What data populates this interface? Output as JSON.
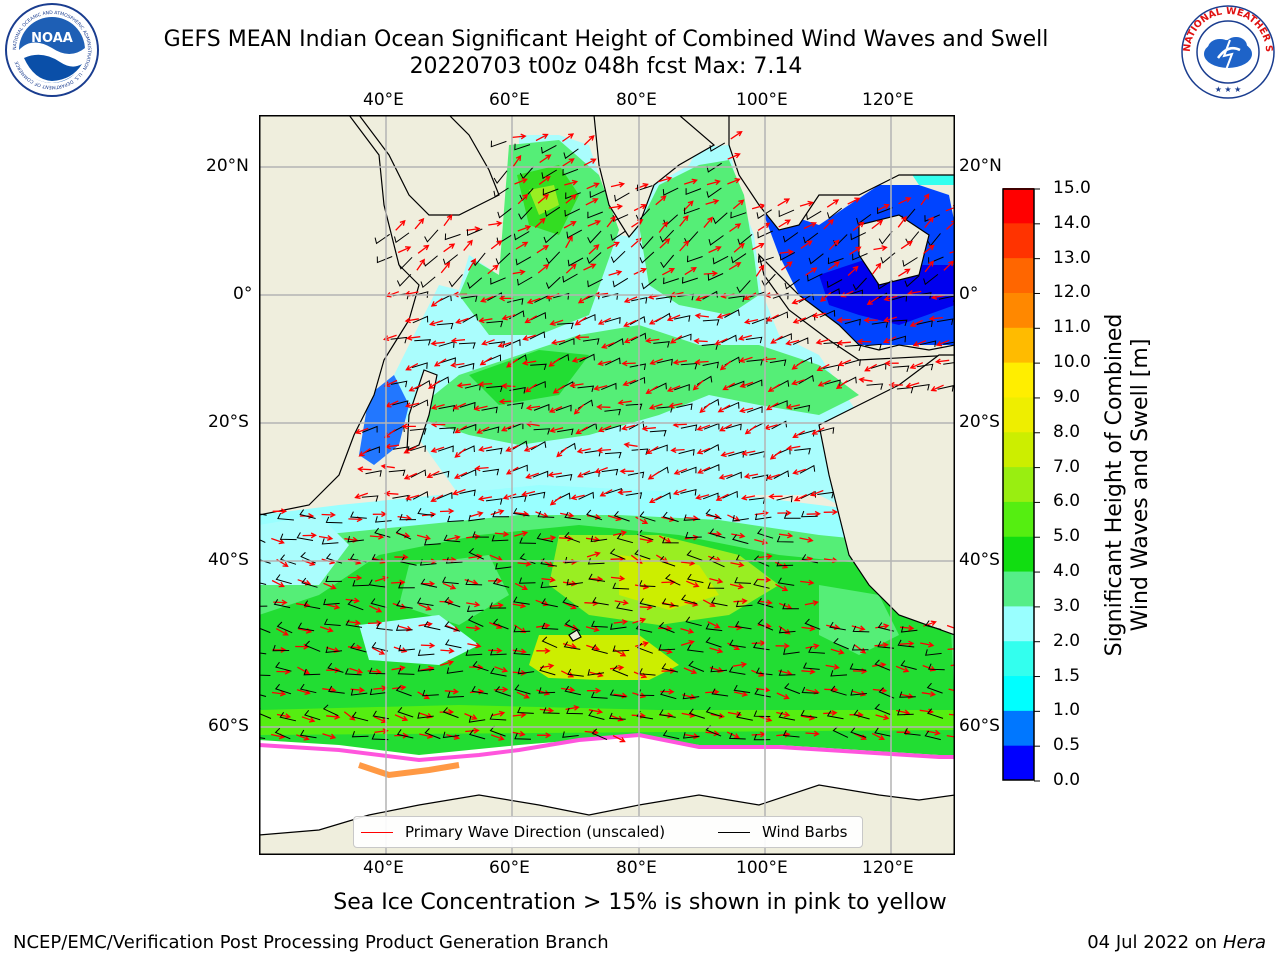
{
  "title": {
    "line1": "GEFS MEAN Indian Ocean Significant Height of Combined Wind Waves and Swell",
    "line2": "20220703 t00z 048h fcst   Max: 7.14"
  },
  "logos": {
    "left": {
      "name": "noaa-logo",
      "text": "NOAA",
      "ring_text": "NATIONAL OCEANIC AND ATMOSPHERIC ADMINISTRATION · U.S. DEPARTMENT OF COMMERCE"
    },
    "right": {
      "name": "nws-logo",
      "ring_text": "NATIONAL WEATHER SERVICE"
    }
  },
  "map": {
    "lon_ticks": [
      "40°E",
      "60°E",
      "80°E",
      "100°E",
      "120°E"
    ],
    "lat_ticks_left": [
      "20°N",
      "0°",
      "20°S",
      "40°S",
      "60°S"
    ],
    "lat_ticks_right": [
      "20°N",
      "0°",
      "20°S",
      "40°S",
      "60°S"
    ],
    "extent": {
      "lon": [
        20,
        130
      ],
      "lat": [
        -70,
        27
      ]
    },
    "colors": {
      "land": "#efeedd",
      "gridline": "#b4b4b4",
      "wave_arrow": "#ff0000",
      "wind_barb": "#000000"
    }
  },
  "legend": {
    "items": [
      {
        "label": "Primary Wave Direction (unscaled)",
        "color": "#ff0000"
      },
      {
        "label": "Wind Barbs",
        "color": "#000000"
      }
    ]
  },
  "colorbar": {
    "label_line1": "Significant Height of Combined",
    "label_line2": "Wind Waves and Swell [m]",
    "ticks": [
      "0.0",
      "0.5",
      "1.0",
      "1.5",
      "2.0",
      "3.0",
      "4.0",
      "5.0",
      "6.0",
      "7.0",
      "8.0",
      "9.0",
      "10.0",
      "11.0",
      "12.0",
      "13.0",
      "14.0",
      "15.0"
    ],
    "colors": [
      "#0000ff",
      "#0077ff",
      "#00ffff",
      "#33ffee",
      "#99ffff",
      "#55ee88",
      "#11dd11",
      "#55ee11",
      "#99ee11",
      "#ccee00",
      "#eeee00",
      "#ffee00",
      "#ffbb00",
      "#ff8800",
      "#ff6600",
      "#ff3300",
      "#ff0000"
    ]
  },
  "caption": "Sea Ice Concentration > 15% is shown in pink to yellow",
  "footer": {
    "left": "NCEP/EMC/Verification Post Processing Product Generation Branch",
    "right_date": "04 Jul 2022 on ",
    "right_host": "Hera"
  }
}
